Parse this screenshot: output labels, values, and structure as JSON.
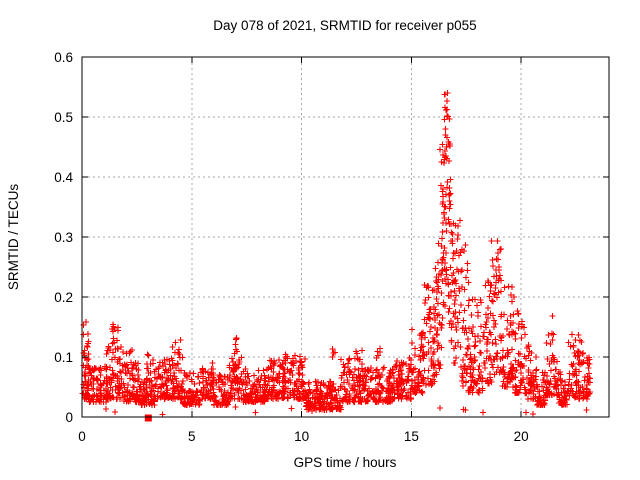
{
  "chart_data": {
    "type": "scatter",
    "title": "Day 078 of 2021, SRMTID for receiver p055",
    "xlabel": "GPS time / hours",
    "ylabel": "SRMTID / TECUs",
    "xlim": [
      0,
      24
    ],
    "ylim": [
      0,
      0.6
    ],
    "xticks": {
      "values": [
        0,
        5,
        10,
        15,
        20
      ],
      "labels": [
        "0",
        "5",
        "10",
        "15",
        "20"
      ]
    },
    "yticks": {
      "values": [
        0,
        0.1,
        0.2,
        0.3,
        0.4,
        0.5,
        0.6
      ],
      "labels": [
        "0",
        "0.1",
        "0.2",
        "0.3",
        "0.4",
        "0.5",
        "0.6"
      ]
    },
    "grid": true,
    "legend": "none",
    "marker": "plus",
    "colors": {
      "marker": "#ff0000",
      "grid": "#a6a6a6",
      "axis": "#000000",
      "background": "#ffffff"
    },
    "seed": 78,
    "envelope_segments": [
      [
        0.02,
        0.3,
        35,
        0.03,
        0.1,
        1.8
      ],
      [
        0.05,
        0.3,
        12,
        0.1,
        0.16,
        1.0
      ],
      [
        0.3,
        1.1,
        85,
        0.025,
        0.085,
        1.8
      ],
      [
        1.1,
        1.9,
        90,
        0.03,
        0.125,
        1.6
      ],
      [
        1.3,
        1.7,
        10,
        0.12,
        0.155,
        1.0
      ],
      [
        1.9,
        2.6,
        70,
        0.025,
        0.09,
        1.8
      ],
      [
        2.0,
        2.3,
        5,
        0.09,
        0.115,
        1.0
      ],
      [
        2.6,
        3.4,
        80,
        0.02,
        0.08,
        1.8
      ],
      [
        2.9,
        3.3,
        8,
        0.08,
        0.105,
        1.0
      ],
      [
        3.4,
        4.6,
        120,
        0.03,
        0.1,
        1.7
      ],
      [
        4.1,
        4.5,
        8,
        0.1,
        0.13,
        1.0
      ],
      [
        4.6,
        5.4,
        80,
        0.02,
        0.075,
        1.8
      ],
      [
        5.4,
        6.0,
        60,
        0.03,
        0.09,
        1.7
      ],
      [
        6.0,
        6.7,
        70,
        0.02,
        0.07,
        1.8
      ],
      [
        6.7,
        7.3,
        60,
        0.03,
        0.1,
        1.6
      ],
      [
        6.95,
        7.1,
        7,
        0.1,
        0.135,
        1.0
      ],
      [
        7.3,
        8.4,
        110,
        0.025,
        0.08,
        1.8
      ],
      [
        8.4,
        9.2,
        80,
        0.03,
        0.095,
        1.7
      ],
      [
        9.2,
        10.2,
        100,
        0.03,
        0.105,
        1.7
      ],
      [
        10.2,
        11.8,
        160,
        0.012,
        0.06,
        1.6
      ],
      [
        11.3,
        11.55,
        4,
        0.095,
        0.118,
        1.0
      ],
      [
        11.8,
        12.9,
        110,
        0.025,
        0.1,
        1.8
      ],
      [
        12.4,
        12.8,
        6,
        0.09,
        0.112,
        1.0
      ],
      [
        12.9,
        14.2,
        130,
        0.025,
        0.085,
        1.8
      ],
      [
        13.4,
        13.6,
        5,
        0.09,
        0.115,
        1.0
      ],
      [
        14.2,
        15.0,
        80,
        0.03,
        0.1,
        1.6
      ],
      [
        15.0,
        15.6,
        62,
        0.04,
        0.15,
        1.5
      ],
      [
        15.6,
        16.1,
        58,
        0.05,
        0.22,
        1.4
      ],
      [
        16.1,
        16.4,
        38,
        0.07,
        0.3,
        1.2
      ],
      [
        16.4,
        16.85,
        60,
        0.12,
        0.38,
        1.0
      ],
      [
        16.3,
        16.8,
        26,
        0.35,
        0.46,
        1.0
      ],
      [
        16.55,
        16.65,
        3,
        0.465,
        0.488,
        1.0
      ],
      [
        16.5,
        16.75,
        11,
        0.49,
        0.553,
        1.0
      ],
      [
        16.85,
        17.25,
        46,
        0.08,
        0.33,
        1.2
      ],
      [
        17.25,
        17.6,
        40,
        0.05,
        0.3,
        1.5
      ],
      [
        17.6,
        18.3,
        75,
        0.04,
        0.2,
        1.6
      ],
      [
        18.3,
        18.65,
        40,
        0.05,
        0.23,
        1.4
      ],
      [
        18.65,
        19.1,
        52,
        0.07,
        0.295,
        1.1
      ],
      [
        19.1,
        19.7,
        65,
        0.05,
        0.22,
        1.6
      ],
      [
        19.7,
        20.2,
        55,
        0.04,
        0.18,
        1.7
      ],
      [
        20.2,
        20.7,
        50,
        0.03,
        0.12,
        1.7
      ],
      [
        20.7,
        21.1,
        40,
        0.02,
        0.08,
        1.8
      ],
      [
        21.1,
        21.7,
        60,
        0.035,
        0.14,
        1.6
      ],
      [
        21.4,
        21.5,
        1,
        0.165,
        0.17,
        1.0
      ],
      [
        21.7,
        22.1,
        40,
        0.02,
        0.075,
        1.8
      ],
      [
        22.1,
        22.85,
        75,
        0.03,
        0.14,
        1.7
      ],
      [
        22.85,
        23.15,
        30,
        0.03,
        0.1,
        1.7
      ],
      [
        0.5,
        23.0,
        15,
        0.004,
        0.018,
        1.0
      ]
    ],
    "special_points": {
      "marker": "filled-square",
      "color": "#ff0000",
      "points": [
        [
          3.02,
          0.0
        ]
      ]
    }
  }
}
